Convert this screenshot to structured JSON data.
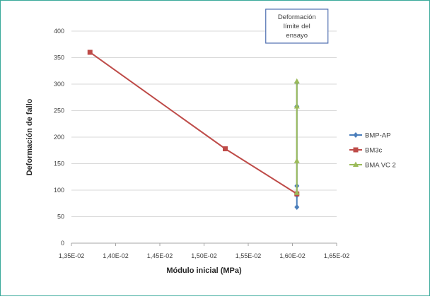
{
  "chart_data": {
    "type": "line",
    "xlabel": "Módulo inicial (MPa)",
    "ylabel": "Deformación de fallo",
    "xlim": [
      0.0135,
      0.0165
    ],
    "ylim": [
      0,
      400
    ],
    "x_ticks": [
      0.0135,
      0.014,
      0.0145,
      0.015,
      0.0155,
      0.016,
      0.0165
    ],
    "x_tick_labels": [
      "1,35E-02",
      "1,40E-02",
      "1,45E-02",
      "1,50E-02",
      "1,55E-02",
      "1,60E-02",
      "1,65E-02"
    ],
    "y_ticks": [
      0,
      50,
      100,
      150,
      200,
      250,
      300,
      350,
      400
    ],
    "y_tick_labels": [
      "0",
      "50",
      "100",
      "150",
      "200",
      "250",
      "300",
      "350",
      "400"
    ],
    "grid": "horizontal",
    "legend_position": "right",
    "series": [
      {
        "name": "BMP-AP",
        "color": "#4a7ebb",
        "marker": "diamond",
        "x": [
          0.01605,
          0.01605,
          0.01605,
          0.01605,
          0.01605
        ],
        "y": [
          68,
          90,
          108,
          258,
          303
        ]
      },
      {
        "name": "BM3c",
        "color": "#be4b48",
        "marker": "square",
        "x": [
          0.01371,
          0.01524,
          0.01605
        ],
        "y": [
          360,
          178,
          93
        ]
      },
      {
        "name": "BMA VC 2",
        "color": "#9bbb59",
        "marker": "triangle",
        "x": [
          0.01605,
          0.01605,
          0.01605,
          0.01605
        ],
        "y": [
          95,
          155,
          258,
          305
        ]
      }
    ],
    "annotation": {
      "lines": [
        "Deformación",
        "límite del",
        "ensayo"
      ],
      "box_color": "#4f6fb0"
    }
  }
}
